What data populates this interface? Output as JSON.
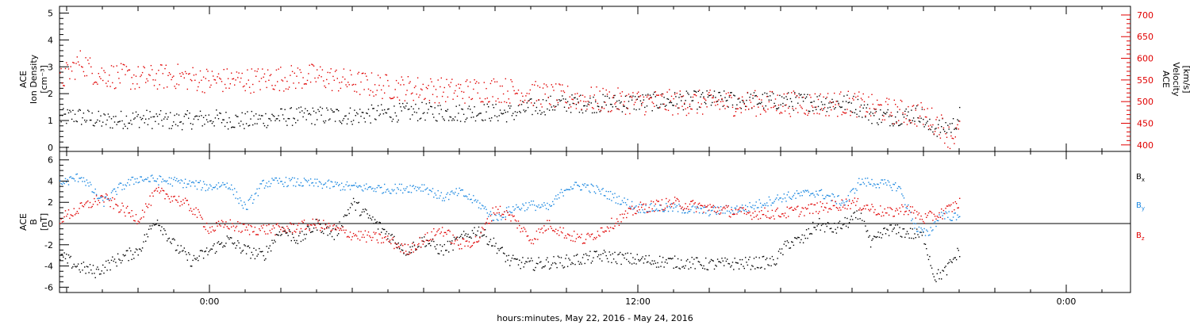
{
  "chart_data": [
    {
      "type": "scatter",
      "panel": "top",
      "left_axis": {
        "label_lines": [
          "ACE",
          "Ion Density",
          "[cm⁻³]"
        ],
        "ticks": [
          0,
          1,
          2,
          3,
          4,
          5
        ],
        "ylim": [
          -0.15,
          5.25
        ]
      },
      "right_axis": {
        "label_lines": [
          "ACE",
          "Velocity",
          "[km/s]"
        ],
        "ticks": [
          400,
          450,
          500,
          550,
          600,
          650,
          700
        ],
        "ylim": [
          385,
          720
        ]
      },
      "x_hours_range": [
        -16.2,
        13.8
      ],
      "series": [
        {
          "color": "#000000",
          "axis": "left",
          "anchors": [
            [
              -16.2,
              1.1
            ],
            [
              -15.8,
              1.2
            ],
            [
              -15,
              1.0
            ],
            [
              -14,
              1.1
            ],
            [
              -13,
              1.0
            ],
            [
              -12,
              1.1
            ],
            [
              -11,
              1.0
            ],
            [
              -10,
              1.15
            ],
            [
              -9,
              1.2
            ],
            [
              -8,
              1.2
            ],
            [
              -7,
              1.3
            ],
            [
              -6,
              1.35
            ],
            [
              -5,
              1.3
            ],
            [
              -4.5,
              1.35
            ],
            [
              -4,
              1.3
            ],
            [
              -3.5,
              1.3
            ],
            [
              -3,
              1.5
            ],
            [
              -2.5,
              1.6
            ],
            [
              -2,
              1.65
            ],
            [
              -1,
              1.65
            ],
            [
              0,
              1.7
            ],
            [
              1,
              1.75
            ],
            [
              2,
              1.8
            ],
            [
              3,
              1.75
            ],
            [
              4,
              1.75
            ],
            [
              5,
              1.7
            ],
            [
              6,
              1.65
            ],
            [
              6.6,
              1.2
            ],
            [
              7,
              1.15
            ],
            [
              7.5,
              1.2
            ],
            [
              7.9,
              1.3
            ],
            [
              8.1,
              0.75
            ],
            [
              8.5,
              0.75
            ],
            [
              8.8,
              0.8
            ],
            [
              9.0,
              1.2
            ]
          ],
          "jitter": 0.35
        },
        {
          "color": "#e00000",
          "axis": "right",
          "anchors": [
            [
              -16.2,
              550
            ],
            [
              -15.6,
              595
            ],
            [
              -15.2,
              565
            ],
            [
              -14,
              555
            ],
            [
              -13,
              560
            ],
            [
              -12,
              550
            ],
            [
              -11,
              550
            ],
            [
              -10,
              555
            ],
            [
              -9,
              560
            ],
            [
              -8,
              545
            ],
            [
              -7,
              535
            ],
            [
              -6,
              530
            ],
            [
              -5,
              525
            ],
            [
              -4,
              530
            ],
            [
              -3,
              520
            ],
            [
              -2,
              510
            ],
            [
              -1,
              505
            ],
            [
              0,
              500
            ],
            [
              2,
              498
            ],
            [
              4,
              497
            ],
            [
              5,
              496
            ],
            [
              6,
              497
            ],
            [
              6.3,
              492
            ],
            [
              7,
              480
            ],
            [
              8,
              470
            ],
            [
              8.5,
              445
            ],
            [
              8.7,
              420
            ],
            [
              9.0,
              430
            ]
          ],
          "jitter": 30
        }
      ]
    },
    {
      "type": "scatter",
      "panel": "bottom",
      "left_axis": {
        "label_lines": [
          "ACE",
          "B",
          "[nT]"
        ],
        "ticks": [
          -6,
          -4,
          -2,
          0,
          2,
          4,
          6
        ],
        "ylim": [
          -6.5,
          6.8
        ]
      },
      "zero_line": true,
      "x_hours_range": [
        -16.2,
        13.8
      ],
      "series": [
        {
          "name": "Bx",
          "legend_label": "B",
          "legend_sub": "x",
          "color": "#000000",
          "anchors": [
            [
              -16.2,
              -3.0
            ],
            [
              -15.7,
              -4.0
            ],
            [
              -15.2,
              -4.5
            ],
            [
              -14.5,
              -3.2
            ],
            [
              -14,
              -2.5
            ],
            [
              -13.5,
              0.5
            ],
            [
              -13,
              -2.0
            ],
            [
              -12.5,
              -3.5
            ],
            [
              -12,
              -2.5
            ],
            [
              -11.5,
              -1.5
            ],
            [
              -11,
              -2.5
            ],
            [
              -10.5,
              -3.0
            ],
            [
              -10,
              -0.5
            ],
            [
              -9.5,
              -1.5
            ],
            [
              -9,
              0.0
            ],
            [
              -8.5,
              -1.0
            ],
            [
              -8,
              2.0
            ],
            [
              -7.5,
              0.5
            ],
            [
              -7,
              -1.0
            ],
            [
              -6.5,
              -2.5
            ],
            [
              -6,
              -1.5
            ],
            [
              -5.5,
              -2.5
            ],
            [
              -5,
              -1.5
            ],
            [
              -4.5,
              -0.5
            ],
            [
              -4,
              -2.0
            ],
            [
              -3.6,
              -3.5
            ],
            [
              -3,
              -3.8
            ],
            [
              -2,
              -3.5
            ],
            [
              -1,
              -3.0
            ],
            [
              0,
              -3.4
            ],
            [
              1,
              -3.6
            ],
            [
              2,
              -3.8
            ],
            [
              3,
              -3.7
            ],
            [
              3.8,
              -3.6
            ],
            [
              4.2,
              -1.8
            ],
            [
              4.6,
              -1.5
            ],
            [
              5,
              0.0
            ],
            [
              5.5,
              -0.5
            ],
            [
              6.3,
              1.0
            ],
            [
              6.5,
              -2.0
            ],
            [
              7,
              -0.5
            ],
            [
              7.5,
              -0.8
            ],
            [
              8,
              -1.2
            ],
            [
              8.3,
              -5.0
            ],
            [
              8.6,
              -4.5
            ],
            [
              9.0,
              -2.5
            ]
          ],
          "jitter": 0.6
        },
        {
          "name": "By",
          "legend_label": "B",
          "legend_sub": "y",
          "color": "#1a87e0",
          "anchors": [
            [
              -16.2,
              3.8
            ],
            [
              -15.6,
              4.5
            ],
            [
              -15,
              2.0
            ],
            [
              -14.5,
              3.5
            ],
            [
              -14,
              4.3
            ],
            [
              -13,
              4.0
            ],
            [
              -12,
              3.5
            ],
            [
              -11.5,
              3.8
            ],
            [
              -11,
              1.5
            ],
            [
              -10.5,
              3.8
            ],
            [
              -10,
              4.0
            ],
            [
              -9,
              3.8
            ],
            [
              -8,
              3.5
            ],
            [
              -7,
              3.3
            ],
            [
              -6,
              3.5
            ],
            [
              -5.5,
              2.5
            ],
            [
              -5,
              3.0
            ],
            [
              -4.5,
              2.0
            ],
            [
              -4,
              0.5
            ],
            [
              -3.5,
              1.5
            ],
            [
              -3,
              1.8
            ],
            [
              -2.5,
              1.5
            ],
            [
              -2,
              3.5
            ],
            [
              -1.5,
              3.6
            ],
            [
              -1,
              3.0
            ],
            [
              0,
              1.5
            ],
            [
              1,
              1.5
            ],
            [
              2,
              1.2
            ],
            [
              3,
              1.5
            ],
            [
              4,
              2.5
            ],
            [
              5,
              3.0
            ],
            [
              5.8,
              2.0
            ],
            [
              6.2,
              4.0
            ],
            [
              6.8,
              3.8
            ],
            [
              7.3,
              3.5
            ],
            [
              7.8,
              -0.5
            ],
            [
              8.1,
              -1.0
            ],
            [
              8.5,
              1.0
            ],
            [
              9.0,
              0.5
            ]
          ],
          "jitter": 0.45
        },
        {
          "name": "Bz",
          "legend_label": "B",
          "legend_sub": "z",
          "color": "#e00000",
          "anchors": [
            [
              -16.2,
              0.5
            ],
            [
              -15.6,
              1.5
            ],
            [
              -15,
              2.5
            ],
            [
              -14.5,
              1.5
            ],
            [
              -14,
              0.5
            ],
            [
              -13.5,
              3.0
            ],
            [
              -13,
              2.5
            ],
            [
              -12.5,
              1.5
            ],
            [
              -12,
              -0.5
            ],
            [
              -11.5,
              0.0
            ],
            [
              -11,
              -0.5
            ],
            [
              -10,
              -0.5
            ],
            [
              -9,
              0.0
            ],
            [
              -8,
              -1.0
            ],
            [
              -7,
              -1.5
            ],
            [
              -6.5,
              -2.5
            ],
            [
              -6,
              -1.5
            ],
            [
              -5.5,
              -0.5
            ],
            [
              -5,
              -2.0
            ],
            [
              -4.5,
              -1.5
            ],
            [
              -4,
              1.5
            ],
            [
              -3.5,
              0.5
            ],
            [
              -3,
              -1.5
            ],
            [
              -2.5,
              0.0
            ],
            [
              -2,
              -1.0
            ],
            [
              -1.5,
              -1.5
            ],
            [
              -1,
              -0.5
            ],
            [
              -0.5,
              0.5
            ],
            [
              0,
              1.5
            ],
            [
              1,
              2.0
            ],
            [
              2,
              1.5
            ],
            [
              3,
              1.0
            ],
            [
              4,
              1.0
            ],
            [
              5,
              1.5
            ],
            [
              6,
              2.0
            ],
            [
              6.5,
              1.5
            ],
            [
              7,
              1.0
            ],
            [
              7.5,
              1.5
            ],
            [
              8,
              0.5
            ],
            [
              8.5,
              1.0
            ],
            [
              9.0,
              2.0
            ]
          ],
          "jitter": 0.55
        }
      ]
    }
  ],
  "x_axis": {
    "tick_labels": [
      {
        "hour": -12,
        "label": "0:00"
      },
      {
        "hour": 0,
        "label": "12:00"
      },
      {
        "hour": 12,
        "label": "0:00"
      }
    ],
    "title": "hours:minutes, May 22, 2016 - May 24, 2016"
  }
}
